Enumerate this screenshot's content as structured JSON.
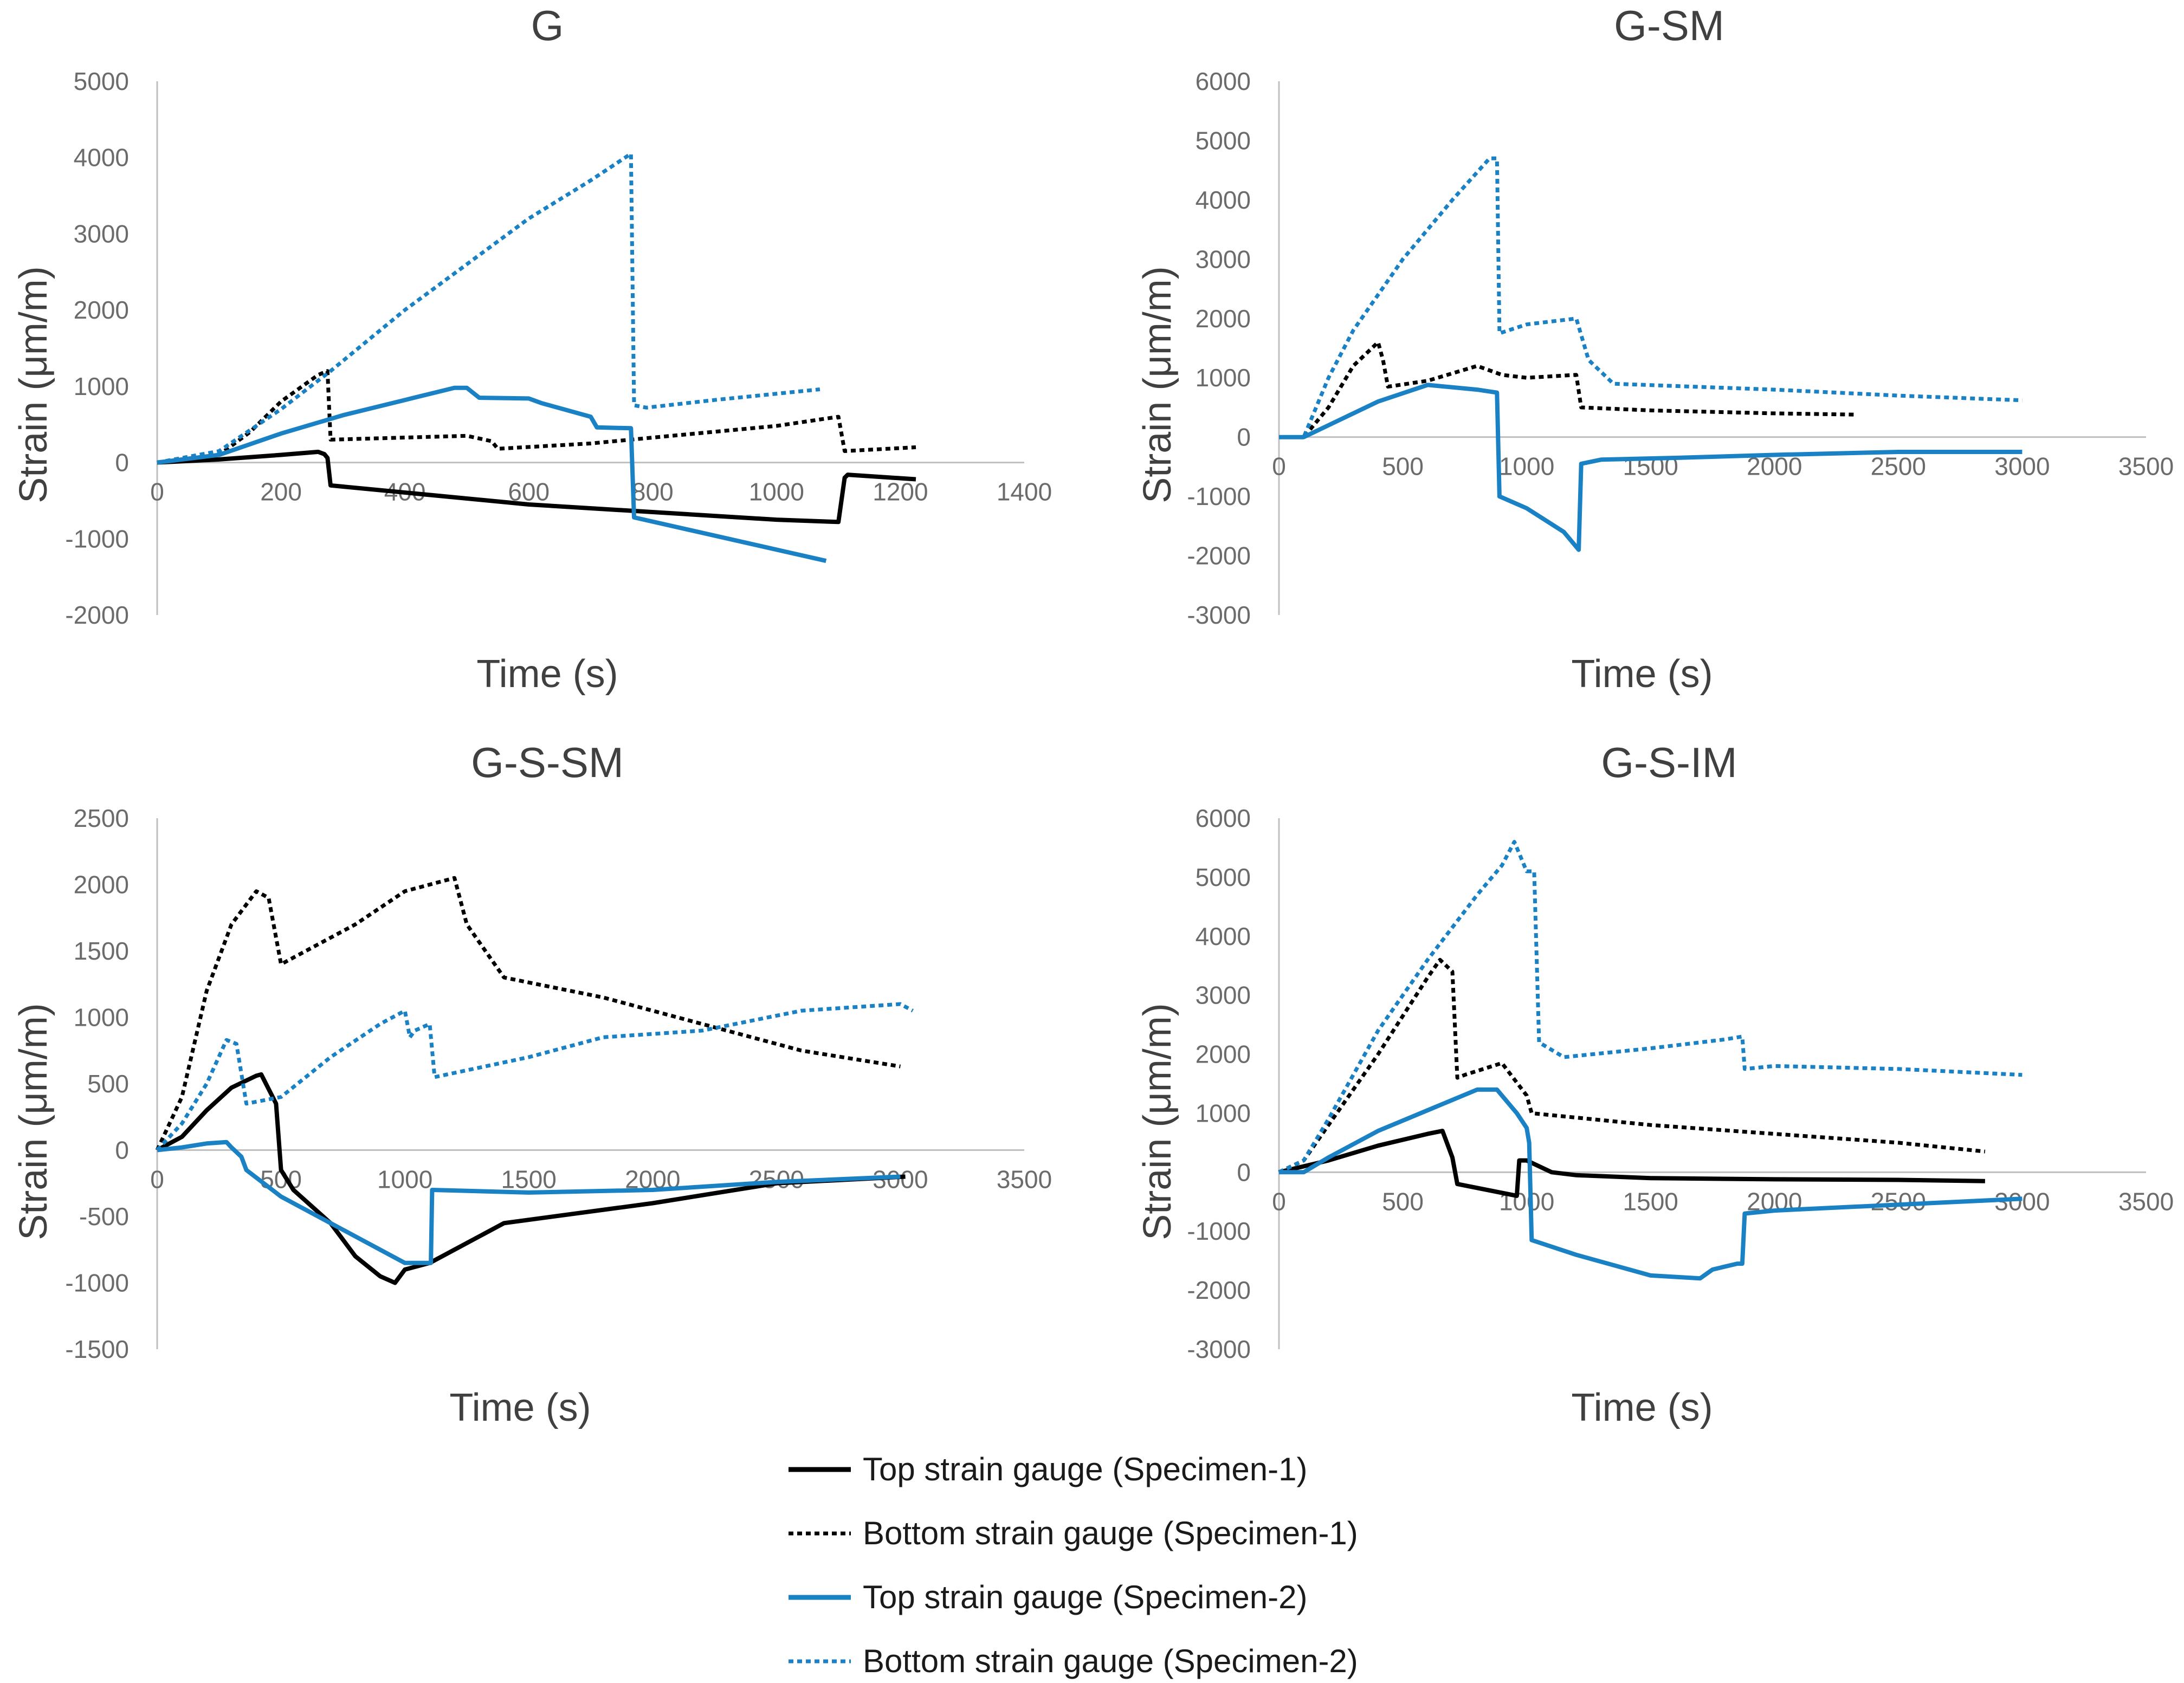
{
  "colors": {
    "specimen1": "#000000",
    "specimen2": "#1a82c4",
    "axis": "#bfbfbf",
    "text": "#404040"
  },
  "legend": [
    {
      "label": "Top strain gauge (Specimen-1)",
      "color": "#000000",
      "dash": false
    },
    {
      "label": "Bottom strain gauge (Specimen-1)",
      "color": "#000000",
      "dash": true
    },
    {
      "label": "Top strain gauge (Specimen-2)",
      "color": "#1a82c4",
      "dash": false
    },
    {
      "label": "Bottom strain gauge (Specimen-2)",
      "color": "#1a82c4",
      "dash": true
    }
  ],
  "chart_data": [
    {
      "type": "line",
      "title": "G",
      "xlabel": "Time (s)",
      "ylabel": "Strain (μm/m)",
      "xlim": [
        0,
        1400
      ],
      "ylim": [
        -2000,
        5000
      ],
      "xticks": [
        0,
        200,
        400,
        600,
        800,
        1000,
        1200,
        1400
      ],
      "yticks": [
        -2000,
        -1000,
        0,
        1000,
        2000,
        3000,
        4000,
        5000
      ],
      "series": [
        {
          "name": "Top strain gauge (Specimen-1)",
          "color": "#000000",
          "dash": false,
          "x": [
            0,
            100,
            200,
            260,
            270,
            275,
            280,
            600,
            1000,
            1100,
            1110,
            1115,
            1225
          ],
          "y": [
            0,
            40,
            100,
            140,
            110,
            60,
            -300,
            -550,
            -750,
            -780,
            -200,
            -160,
            -220
          ]
        },
        {
          "name": "Bottom strain gauge (Specimen-1)",
          "color": "#000000",
          "dash": true,
          "x": [
            0,
            100,
            150,
            200,
            260,
            275,
            280,
            500,
            540,
            550,
            700,
            1000,
            1100,
            1110,
            1225
          ],
          "y": [
            0,
            100,
            400,
            800,
            1150,
            1200,
            300,
            350,
            280,
            180,
            250,
            480,
            600,
            150,
            200
          ]
        },
        {
          "name": "Top strain gauge (Specimen-2)",
          "color": "#1a82c4",
          "dash": false,
          "x": [
            0,
            100,
            200,
            300,
            400,
            480,
            500,
            520,
            600,
            620,
            700,
            710,
            765,
            770,
            1080
          ],
          "y": [
            0,
            100,
            380,
            620,
            820,
            980,
            980,
            850,
            840,
            780,
            600,
            460,
            450,
            -720,
            -1290
          ]
        },
        {
          "name": "Bottom strain gauge (Specimen-2)",
          "color": "#1a82c4",
          "dash": true,
          "x": [
            0,
            100,
            200,
            280,
            400,
            500,
            600,
            700,
            765,
            770,
            790,
            900,
            1070
          ],
          "y": [
            0,
            150,
            700,
            1200,
            2000,
            2600,
            3200,
            3700,
            4050,
            750,
            720,
            820,
            960
          ]
        }
      ]
    },
    {
      "type": "line",
      "title": "G-SM",
      "xlabel": "Time (s)",
      "ylabel": "Strain (μm/m)",
      "xlim": [
        0,
        3500
      ],
      "ylim": [
        -3000,
        6000
      ],
      "xticks": [
        0,
        500,
        1000,
        1500,
        2000,
        2500,
        3000,
        3500
      ],
      "yticks": [
        -3000,
        -2000,
        -1000,
        0,
        1000,
        2000,
        3000,
        4000,
        5000,
        6000
      ],
      "series": [
        {
          "name": "Bottom strain gauge (Specimen-1)",
          "color": "#000000",
          "dash": true,
          "x": [
            0,
            100,
            200,
            300,
            400,
            420,
            440,
            600,
            800,
            900,
            1000,
            1200,
            1220,
            1500,
            2000,
            2320
          ],
          "y": [
            0,
            0,
            500,
            1200,
            1600,
            1300,
            850,
            950,
            1200,
            1050,
            1000,
            1050,
            500,
            450,
            400,
            380
          ]
        },
        {
          "name": "Top strain gauge (Specimen-2)",
          "color": "#1a82c4",
          "dash": false,
          "x": [
            0,
            100,
            200,
            400,
            600,
            800,
            880,
            890,
            1000,
            1150,
            1190,
            1210,
            1220,
            1300,
            1600,
            2000,
            2500,
            3000
          ],
          "y": [
            0,
            0,
            200,
            600,
            880,
            800,
            750,
            -1000,
            -1200,
            -1600,
            -1800,
            -1900,
            -450,
            -380,
            -350,
            -300,
            -250,
            -250
          ]
        },
        {
          "name": "Bottom strain gauge (Specimen-2)",
          "color": "#1a82c4",
          "dash": true,
          "x": [
            0,
            100,
            200,
            300,
            500,
            700,
            850,
            880,
            890,
            1000,
            1200,
            1250,
            1350,
            2000,
            2500,
            3000
          ],
          "y": [
            0,
            0,
            1000,
            1800,
            3000,
            4000,
            4700,
            4700,
            1750,
            1900,
            2000,
            1300,
            900,
            800,
            700,
            620
          ]
        }
      ]
    },
    {
      "type": "line",
      "title": "G-S-SM",
      "xlabel": "Time (s)",
      "ylabel": "Strain (μm/m)",
      "xlim": [
        0,
        3500
      ],
      "ylim": [
        -1500,
        2500
      ],
      "xticks": [
        0,
        500,
        1000,
        1500,
        2000,
        2500,
        3000,
        3500
      ],
      "yticks": [
        -1500,
        -1000,
        -500,
        0,
        500,
        1000,
        1500,
        2000,
        2500
      ],
      "series": [
        {
          "name": "Top strain gauge (Specimen-1)",
          "color": "#000000",
          "dash": false,
          "x": [
            0,
            100,
            200,
            300,
            400,
            420,
            480,
            500,
            550,
            700,
            800,
            900,
            960,
            1000,
            1100,
            1200,
            1400,
            2000,
            2500,
            3020
          ],
          "y": [
            0,
            100,
            300,
            470,
            560,
            570,
            350,
            -150,
            -300,
            -550,
            -800,
            -950,
            -1000,
            -900,
            -850,
            -750,
            -550,
            -400,
            -250,
            -200
          ]
        },
        {
          "name": "Bottom strain gauge (Specimen-1)",
          "color": "#000000",
          "dash": true,
          "x": [
            0,
            100,
            200,
            300,
            400,
            450,
            500,
            600,
            800,
            1000,
            1100,
            1200,
            1250,
            1400,
            1800,
            2200,
            2600,
            3000
          ],
          "y": [
            0,
            400,
            1200,
            1700,
            1950,
            1900,
            1400,
            1500,
            1700,
            1950,
            2000,
            2050,
            1700,
            1300,
            1150,
            950,
            750,
            630
          ]
        },
        {
          "name": "Top strain gauge (Specimen-2)",
          "color": "#1a82c4",
          "dash": false,
          "x": [
            0,
            100,
            200,
            280,
            300,
            340,
            360,
            500,
            700,
            900,
            1000,
            1100,
            1105,
            1110,
            1500,
            2000,
            2500,
            3000
          ],
          "y": [
            0,
            20,
            50,
            60,
            20,
            -50,
            -150,
            -350,
            -550,
            -750,
            -850,
            -850,
            -850,
            -300,
            -320,
            -300,
            -240,
            -200
          ]
        },
        {
          "name": "Bottom strain gauge (Specimen-2)",
          "color": "#1a82c4",
          "dash": true,
          "x": [
            0,
            100,
            200,
            280,
            320,
            360,
            500,
            700,
            900,
            1000,
            1020,
            1040,
            1100,
            1120,
            1500,
            1800,
            2200,
            2600,
            3000,
            3050
          ],
          "y": [
            0,
            200,
            500,
            830,
            800,
            350,
            400,
            700,
            950,
            1050,
            850,
            900,
            950,
            550,
            700,
            850,
            900,
            1050,
            1100,
            1050
          ]
        }
      ]
    },
    {
      "type": "line",
      "title": "G-S-IM",
      "xlabel": "Time (s)",
      "ylabel": "Strain (μm/m)",
      "xlim": [
        0,
        3500
      ],
      "ylim": [
        -3000,
        6000
      ],
      "xticks": [
        0,
        500,
        1000,
        1500,
        2000,
        2500,
        3000,
        3500
      ],
      "yticks": [
        -3000,
        -2000,
        -1000,
        0,
        1000,
        2000,
        3000,
        4000,
        5000,
        6000
      ],
      "series": [
        {
          "name": "Top strain gauge (Specimen-1)",
          "color": "#000000",
          "dash": false,
          "x": [
            0,
            200,
            400,
            600,
            660,
            700,
            720,
            960,
            970,
            1000,
            1100,
            1200,
            1500,
            2000,
            2500,
            2850
          ],
          "y": [
            0,
            200,
            450,
            650,
            700,
            250,
            -200,
            -400,
            200,
            200,
            0,
            -50,
            -100,
            -120,
            -130,
            -150
          ]
        },
        {
          "name": "Bottom strain gauge (Specimen-1)",
          "color": "#000000",
          "dash": true,
          "x": [
            0,
            100,
            200,
            400,
            600,
            650,
            700,
            720,
            750,
            900,
            1000,
            1020,
            1500,
            2000,
            2500,
            2850
          ],
          "y": [
            0,
            200,
            800,
            2000,
            3300,
            3600,
            3400,
            1600,
            1650,
            1850,
            1300,
            1000,
            800,
            650,
            500,
            350
          ]
        },
        {
          "name": "Top strain gauge (Specimen-2)",
          "color": "#1a82c4",
          "dash": false,
          "x": [
            0,
            100,
            200,
            400,
            600,
            800,
            880,
            920,
            960,
            1000,
            1010,
            1020,
            1200,
            1500,
            1700,
            1750,
            1850,
            1870,
            1880,
            2000,
            2500,
            3000
          ],
          "y": [
            0,
            0,
            250,
            700,
            1050,
            1400,
            1400,
            1200,
            1000,
            750,
            500,
            -1150,
            -1400,
            -1750,
            -1800,
            -1650,
            -1550,
            -1550,
            -700,
            -650,
            -550,
            -450
          ]
        },
        {
          "name": "Bottom strain gauge (Specimen-2)",
          "color": "#1a82c4",
          "dash": true,
          "x": [
            0,
            100,
            200,
            400,
            600,
            800,
            900,
            950,
            1000,
            1030,
            1050,
            1150,
            1500,
            1800,
            1870,
            1880,
            2000,
            2500,
            3000
          ],
          "y": [
            0,
            200,
            900,
            2400,
            3600,
            4700,
            5200,
            5600,
            5100,
            5100,
            2200,
            1950,
            2100,
            2250,
            2300,
            1750,
            1800,
            1750,
            1650
          ]
        }
      ]
    }
  ]
}
